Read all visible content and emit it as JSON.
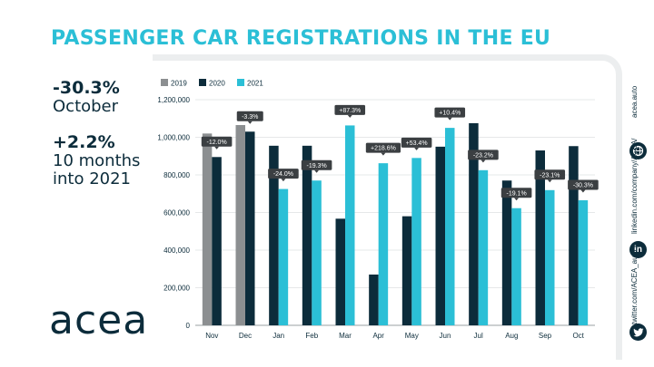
{
  "header": {
    "title": "PASSENGER CAR REGISTRATIONS IN THE EU"
  },
  "stats": [
    {
      "value": "-30.3%",
      "label": "October"
    },
    {
      "value": "+2.2%",
      "label_lines": [
        "10 months",
        "into 2021"
      ]
    }
  ],
  "brand": {
    "logo_text": "acea"
  },
  "social": {
    "website": "acea.auto",
    "linkedin": "linkedin.com/company/ACEA/",
    "twitter": "twitter.com/ACEA_auto",
    "linkedin_icon": "in"
  },
  "colors": {
    "accent": "#2bbfd6",
    "dark": "#0c2c3b",
    "grey": "#8c8f91"
  },
  "chart_data": {
    "type": "bar",
    "title": "",
    "categories": [
      "Nov",
      "Dec",
      "Jan",
      "Feb",
      "Mar",
      "Apr",
      "May",
      "Jun",
      "Jul",
      "Aug",
      "Sep",
      "Oct"
    ],
    "series": [
      {
        "name": "2019",
        "color": "#8c8f91",
        "values": [
          1020000,
          1065000,
          null,
          null,
          null,
          null,
          null,
          null,
          null,
          null,
          null,
          null
        ]
      },
      {
        "name": "2020",
        "color": "#0c2c3b",
        "values": [
          895000,
          1030000,
          955000,
          955000,
          567000,
          270000,
          580000,
          950000,
          1075000,
          770000,
          930000,
          953000
        ]
      },
      {
        "name": "2021",
        "color": "#2bbfd6",
        "values": [
          null,
          null,
          725000,
          770000,
          1063000,
          862000,
          890000,
          1050000,
          825000,
          623000,
          719000,
          665000
        ]
      }
    ],
    "annotations": [
      "-12.0%",
      "-3.3%",
      "-24.0%",
      "-19.3%",
      "+87.3%",
      "+218.6%",
      "+53.4%",
      "+10.4%",
      "-23.2%",
      "-19.1%",
      "-23.1%",
      "-30.3%"
    ],
    "yticks": [
      0,
      200000,
      400000,
      600000,
      800000,
      1000000,
      1200000
    ],
    "ytick_labels": [
      "0",
      "200,000",
      "400,000",
      "600,000",
      "800,000",
      "1,000,000",
      "1,200,000"
    ],
    "ylim": [
      0,
      1200000
    ],
    "grid": true,
    "legend_position": "top-left",
    "xlabel": "",
    "ylabel": ""
  }
}
